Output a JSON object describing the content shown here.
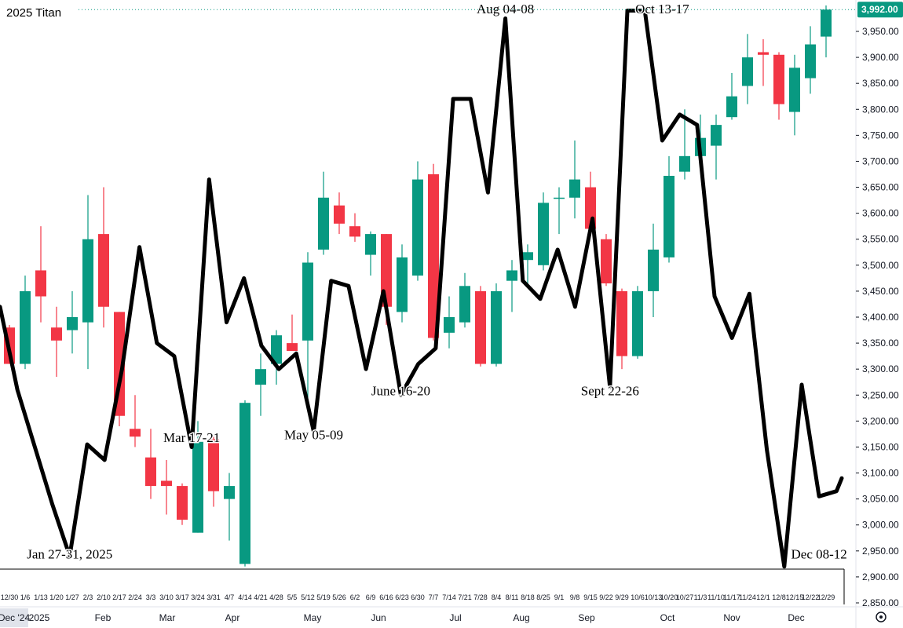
{
  "chart_data": {
    "type": "candlestick",
    "title": "2025 Titan",
    "current_price_label": "3,992.00",
    "colors": {
      "up": "#089981",
      "down": "#f23645",
      "overlay_line": "#000000",
      "price_tag": "#089981",
      "dotted_line": "#089981"
    },
    "y_axis": {
      "min": 2850,
      "max": 4000,
      "tick_labels": [
        "3,950.00",
        "3,900.00",
        "3,850.00",
        "3,800.00",
        "3,750.00",
        "3,700.00",
        "3,650.00",
        "3,600.00",
        "3,550.00",
        "3,500.00",
        "3,450.00",
        "3,400.00",
        "3,350.00",
        "3,300.00",
        "3,250.00",
        "3,200.00",
        "3,150.00",
        "3,100.00",
        "3,050.00",
        "3,000.00",
        "2,950.00",
        "2,900.00",
        "2,850.00"
      ],
      "tick_values": [
        3950,
        3900,
        3850,
        3800,
        3750,
        3700,
        3650,
        3600,
        3550,
        3500,
        3450,
        3400,
        3350,
        3300,
        3250,
        3200,
        3150,
        3100,
        3050,
        3000,
        2950,
        2900,
        2850
      ]
    },
    "x_week_labels": [
      "12/30",
      "1/6",
      "1/13",
      "1/20",
      "1/27",
      "2/3",
      "2/10",
      "2/17",
      "2/24",
      "3/3",
      "3/10",
      "3/17",
      "3/24",
      "3/31",
      "4/7",
      "4/14",
      "4/21",
      "4/28",
      "5/5",
      "5/12",
      "5/19",
      "5/26",
      "6/2",
      "6/9",
      "6/16",
      "6/23",
      "6/30",
      "7/7",
      "7/14",
      "7/21",
      "7/28",
      "8/4",
      "8/11",
      "8/18",
      "8/25",
      "9/1",
      "9/8",
      "9/15",
      "9/22",
      "9/29",
      "10/6",
      "10/13",
      "10/20",
      "10/27",
      "11/3",
      "11/10",
      "11/17",
      "11/24",
      "12/1",
      "12/8",
      "12/15",
      "12/22",
      "12/29"
    ],
    "x_month_labels": [
      "Dec '24",
      "2025",
      "Feb",
      "Mar",
      "Apr",
      "May",
      "Jun",
      "Jul",
      "Aug",
      "Sep",
      "Oct",
      "Nov",
      "Dec"
    ],
    "candles": [
      {
        "o": 3380,
        "h": 3385,
        "l": 3310,
        "c": 3310
      },
      {
        "o": 3310,
        "h": 3480,
        "l": 3300,
        "c": 3450
      },
      {
        "o": 3490,
        "h": 3575,
        "l": 3390,
        "c": 3440
      },
      {
        "o": 3380,
        "h": 3420,
        "l": 3285,
        "c": 3355
      },
      {
        "o": 3375,
        "h": 3450,
        "l": 3330,
        "c": 3400
      },
      {
        "o": 3390,
        "h": 3635,
        "l": 3300,
        "c": 3550
      },
      {
        "o": 3560,
        "h": 3650,
        "l": 3380,
        "c": 3420
      },
      {
        "o": 3410,
        "h": 3410,
        "l": 3190,
        "c": 3210
      },
      {
        "o": 3185,
        "h": 3250,
        "l": 3150,
        "c": 3170
      },
      {
        "o": 3130,
        "h": 3185,
        "l": 3050,
        "c": 3075
      },
      {
        "o": 3085,
        "h": 3125,
        "l": 3020,
        "c": 3075
      },
      {
        "o": 3075,
        "h": 3080,
        "l": 3000,
        "c": 3010
      },
      {
        "o": 2985,
        "h": 3200,
        "l": 2985,
        "c": 3160
      },
      {
        "o": 3165,
        "h": 3170,
        "l": 3035,
        "c": 3065
      },
      {
        "o": 3050,
        "h": 3100,
        "l": 2970,
        "c": 3075
      },
      {
        "o": 2925,
        "h": 3240,
        "l": 2920,
        "c": 3235
      },
      {
        "o": 3270,
        "h": 3330,
        "l": 3210,
        "c": 3300
      },
      {
        "o": 3310,
        "h": 3375,
        "l": 3270,
        "c": 3365
      },
      {
        "o": 3350,
        "h": 3405,
        "l": 3340,
        "c": 3335
      },
      {
        "o": 3355,
        "h": 3525,
        "l": 3245,
        "c": 3505
      },
      {
        "o": 3530,
        "h": 3680,
        "l": 3520,
        "c": 3630
      },
      {
        "o": 3615,
        "h": 3640,
        "l": 3560,
        "c": 3580
      },
      {
        "o": 3575,
        "h": 3600,
        "l": 3545,
        "c": 3555
      },
      {
        "o": 3520,
        "h": 3565,
        "l": 3480,
        "c": 3560
      },
      {
        "o": 3560,
        "h": 3560,
        "l": 3385,
        "c": 3420
      },
      {
        "o": 3410,
        "h": 3540,
        "l": 3390,
        "c": 3515
      },
      {
        "o": 3480,
        "h": 3700,
        "l": 3470,
        "c": 3665
      },
      {
        "o": 3675,
        "h": 3695,
        "l": 3355,
        "c": 3360
      },
      {
        "o": 3370,
        "h": 3440,
        "l": 3340,
        "c": 3400
      },
      {
        "o": 3390,
        "h": 3485,
        "l": 3380,
        "c": 3460
      },
      {
        "o": 3450,
        "h": 3460,
        "l": 3305,
        "c": 3310
      },
      {
        "o": 3310,
        "h": 3465,
        "l": 3305,
        "c": 3450
      },
      {
        "o": 3470,
        "h": 3510,
        "l": 3410,
        "c": 3490
      },
      {
        "o": 3510,
        "h": 3540,
        "l": 3460,
        "c": 3525
      },
      {
        "o": 3500,
        "h": 3640,
        "l": 3490,
        "c": 3620
      },
      {
        "o": 3630,
        "h": 3650,
        "l": 3560,
        "c": 3630
      },
      {
        "o": 3630,
        "h": 3740,
        "l": 3590,
        "c": 3665
      },
      {
        "o": 3650,
        "h": 3680,
        "l": 3560,
        "c": 3570
      },
      {
        "o": 3550,
        "h": 3560,
        "l": 3460,
        "c": 3465
      },
      {
        "o": 3450,
        "h": 3455,
        "l": 3300,
        "c": 3325
      },
      {
        "o": 3325,
        "h": 3460,
        "l": 3320,
        "c": 3450
      },
      {
        "o": 3450,
        "h": 3580,
        "l": 3400,
        "c": 3530
      },
      {
        "o": 3515,
        "h": 3710,
        "l": 3505,
        "c": 3672
      },
      {
        "o": 3680,
        "h": 3800,
        "l": 3665,
        "c": 3710
      },
      {
        "o": 3710,
        "h": 3790,
        "l": 3700,
        "c": 3745
      },
      {
        "o": 3730,
        "h": 3790,
        "l": 3665,
        "c": 3770
      },
      {
        "o": 3785,
        "h": 3870,
        "l": 3780,
        "c": 3825
      },
      {
        "o": 3845,
        "h": 3945,
        "l": 3810,
        "c": 3900
      },
      {
        "o": 3910,
        "h": 3935,
        "l": 3845,
        "c": 3905
      },
      {
        "o": 3905,
        "h": 3910,
        "l": 3780,
        "c": 3810
      },
      {
        "o": 3795,
        "h": 3905,
        "l": 3750,
        "c": 3880
      },
      {
        "o": 3860,
        "h": 3960,
        "l": 3830,
        "c": 3925
      },
      {
        "o": 3940,
        "h": 4000,
        "l": 3900,
        "c": 3992
      }
    ],
    "overlay_line": {
      "description": "hand-drawn seasonality line",
      "points": [
        [
          0,
          3420
        ],
        [
          1,
          3260
        ],
        [
          3,
          3040
        ],
        [
          4,
          2940
        ],
        [
          5,
          3155
        ],
        [
          6,
          3125
        ],
        [
          7,
          3300
        ],
        [
          8,
          3535
        ],
        [
          9,
          3350
        ],
        [
          10,
          3325
        ],
        [
          11,
          3150
        ],
        [
          12,
          3665
        ],
        [
          13,
          3390
        ],
        [
          14,
          3475
        ],
        [
          15,
          3345
        ],
        [
          16,
          3300
        ],
        [
          17,
          3330
        ],
        [
          18,
          3180
        ],
        [
          19,
          3470
        ],
        [
          20,
          3460
        ],
        [
          21,
          3300
        ],
        [
          22,
          3450
        ],
        [
          23,
          3250
        ],
        [
          24,
          3310
        ],
        [
          25,
          3340
        ],
        [
          26,
          3820
        ],
        [
          27,
          3820
        ],
        [
          28,
          3640
        ],
        [
          29,
          3975
        ],
        [
          30,
          3470
        ],
        [
          31,
          3435
        ],
        [
          32,
          3530
        ],
        [
          33,
          3420
        ],
        [
          34,
          3590
        ],
        [
          35,
          3265
        ],
        [
          36,
          3990
        ],
        [
          37,
          3990
        ],
        [
          38,
          3740
        ],
        [
          39,
          3790
        ],
        [
          40,
          3770
        ],
        [
          41,
          3440
        ],
        [
          42,
          3360
        ],
        [
          43,
          3445
        ],
        [
          44,
          3145
        ],
        [
          45,
          2920
        ],
        [
          46,
          3270
        ],
        [
          47,
          3055
        ],
        [
          48,
          3065
        ],
        [
          48.3,
          3090
        ]
      ]
    },
    "annotations": [
      {
        "text": "Jan 27-31, 2025",
        "x": 4,
        "y": 2935
      },
      {
        "text": "Mar 17-21",
        "x": 11,
        "y": 3160
      },
      {
        "text": "May 05-09",
        "x": 18,
        "y": 3165
      },
      {
        "text": "June 16-20",
        "x": 23,
        "y": 3250
      },
      {
        "text": "Aug 04-08",
        "x": 29,
        "y": 3985
      },
      {
        "text": "Sept 22-26",
        "x": 35,
        "y": 3250
      },
      {
        "text": "Oct 13-17",
        "x": 38,
        "y": 3985
      },
      {
        "text": "Dec 08-12",
        "x": 47,
        "y": 2935
      }
    ],
    "legend": "none",
    "grid": false
  }
}
